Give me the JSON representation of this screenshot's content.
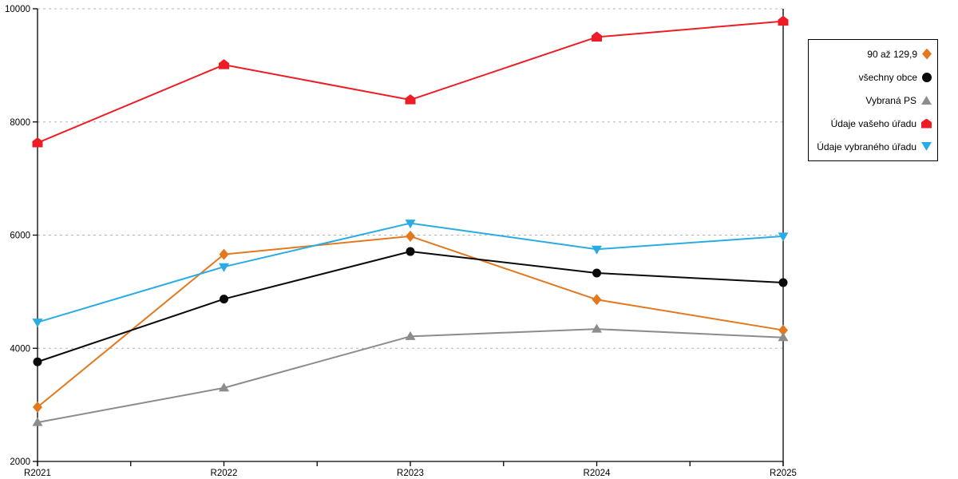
{
  "chart_data": {
    "type": "line",
    "title": "",
    "xlabel": "",
    "ylabel": "",
    "x": [
      "R2021",
      "R2022",
      "R2023",
      "R2024",
      "R2025"
    ],
    "series": [
      {
        "name": "90 až 129,9",
        "marker": "diamond",
        "color": "#E2791F",
        "values": [
          2960,
          5660,
          5980,
          4860,
          4320
        ]
      },
      {
        "name": "všechny obce",
        "marker": "circle",
        "color": "#0A0A0A",
        "values": [
          3760,
          4870,
          5710,
          5330,
          5160
        ]
      },
      {
        "name": "Vybraná PS",
        "marker": "triangle-up",
        "color": "#8C8C8C",
        "values": [
          2690,
          3300,
          4210,
          4340,
          4190
        ]
      },
      {
        "name": "Údaje vašeho úřadu",
        "marker": "pentagon",
        "color": "#EE1D25",
        "values": [
          7630,
          9010,
          8390,
          9500,
          9780
        ]
      },
      {
        "name": "Údaje vybraného úřadu",
        "marker": "triangle-down",
        "color": "#29ACE3",
        "values": [
          4460,
          5440,
          6210,
          5750,
          5980
        ]
      }
    ],
    "ylim": [
      2000,
      10000
    ],
    "yticks": [
      2000,
      4000,
      6000,
      8000,
      10000
    ],
    "grid": "horizontal-dashed",
    "gridline_color": "#B5B5B5",
    "axis_color": "#000000",
    "legend_position": "top-right"
  }
}
